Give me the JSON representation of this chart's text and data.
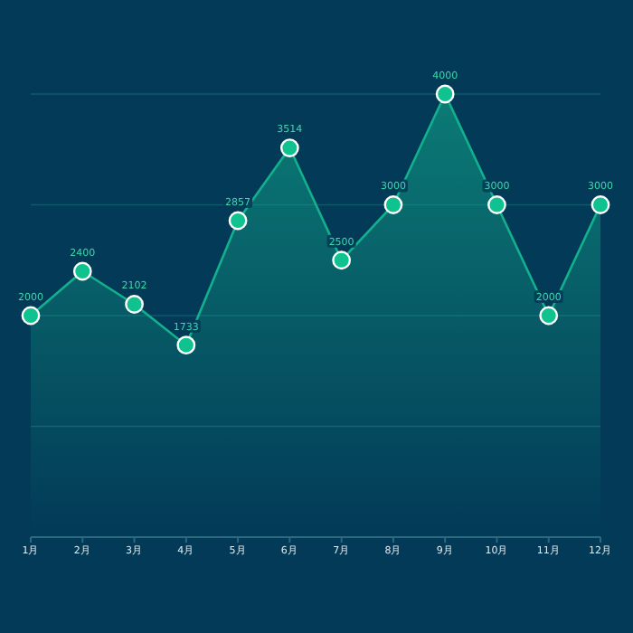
{
  "chart_data": {
    "type": "area",
    "categories": [
      "1月",
      "2月",
      "3月",
      "4月",
      "5月",
      "6月",
      "7月",
      "8月",
      "9月",
      "10月",
      "11月",
      "12月"
    ],
    "series": [
      {
        "color": "#13b08e",
        "values": [
          2000,
          2400,
          2102,
          1733,
          2857,
          3514,
          2500,
          3000,
          4000,
          3000,
          2000,
          3000
        ]
      }
    ],
    "ylim": [
      0,
      4000
    ],
    "yticks": [
      {
        "value": 0,
        "label": null
      },
      {
        "value": 1000,
        "label": null
      },
      {
        "value": 2000,
        "label": null
      },
      {
        "value": 3000,
        "label": null
      },
      {
        "value": 4000,
        "label": null
      }
    ],
    "tick_labels": "x",
    "grid": "y",
    "marker": "circle",
    "line_style": "solid",
    "data_labels": true
  }
}
